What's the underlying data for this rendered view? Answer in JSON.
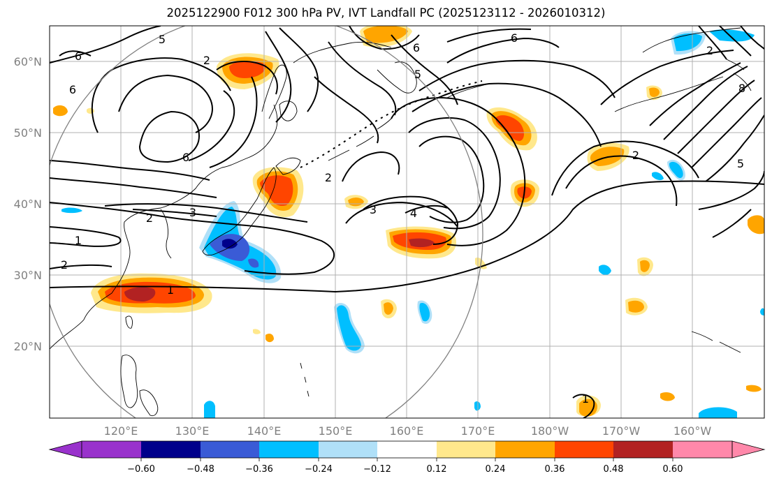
{
  "title": "2025122900 F012 300 hPa PV, IVT Landfall PC (2025123112 - 2026010312)",
  "lat_labels": [
    "60°N",
    "50°N",
    "40°N",
    "30°N",
    "20°N"
  ],
  "lon_labels": [
    "120°E",
    "130°E",
    "140°E",
    "150°E",
    "160°E",
    "170°E",
    "180°W",
    "170°W",
    "160°W"
  ],
  "colorbar": {
    "tick_labels": [
      "−0.60",
      "−0.48",
      "−0.36",
      "−0.24",
      "−0.12",
      "0.12",
      "0.24",
      "0.36",
      "0.48",
      "0.60"
    ],
    "colors": [
      "#9932cc",
      "#00008b",
      "#3a5bd6",
      "#00bfff",
      "#b0e0f8",
      "#ffffff",
      "#ffe88c",
      "#ffa500",
      "#ff4500",
      "#b22222",
      "#ff88aa"
    ]
  },
  "contour_labels": [
    "6",
    "5",
    "2",
    "6",
    "6",
    "6",
    "5",
    "6",
    "2",
    "2",
    "3",
    "3",
    "2",
    "1",
    "2",
    "1",
    "4",
    "2",
    "5",
    "1",
    "8"
  ]
}
